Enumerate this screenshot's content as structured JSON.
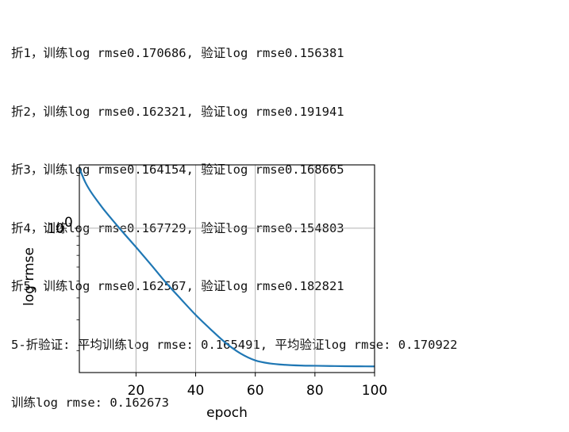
{
  "console": {
    "lines": [
      "折1，训练log rmse0.170686, 验证log rmse0.156381",
      "折2，训练log rmse0.162321, 验证log rmse0.191941",
      "折3，训练log rmse0.164154, 验证log rmse0.168665",
      "折4，训练log rmse0.167729, 验证log rmse0.154803",
      "折5，训练log rmse0.162567, 验证log rmse0.182821",
      "5-折验证: 平均训练log rmse: 0.165491, 平均验证log rmse: 0.170922",
      "训练log rmse: 0.162673"
    ]
  },
  "chart_data": {
    "type": "line",
    "xlabel": "epoch",
    "ylabel": "log rmse",
    "yscale": "log",
    "xlim": [
      1,
      100
    ],
    "ylim": [
      0.15,
      2.3
    ],
    "xticks": [
      20,
      40,
      60,
      80,
      100
    ],
    "ytick_major": {
      "value": 1,
      "base": "10",
      "exp": "0"
    },
    "grid": true,
    "color": "#1f77b4",
    "series": [
      {
        "x": [
          1,
          3,
          5,
          8,
          10,
          15,
          20,
          25,
          30,
          35,
          40,
          45,
          50,
          55,
          60,
          65,
          70,
          75,
          80,
          85,
          90,
          95,
          100
        ],
        "y": [
          2.2,
          1.83,
          1.6,
          1.36,
          1.23,
          0.975,
          0.78,
          0.62,
          0.49,
          0.395,
          0.32,
          0.265,
          0.222,
          0.193,
          0.176,
          0.169,
          0.166,
          0.1645,
          0.164,
          0.1635,
          0.163,
          0.1628,
          0.162673
        ]
      }
    ]
  }
}
